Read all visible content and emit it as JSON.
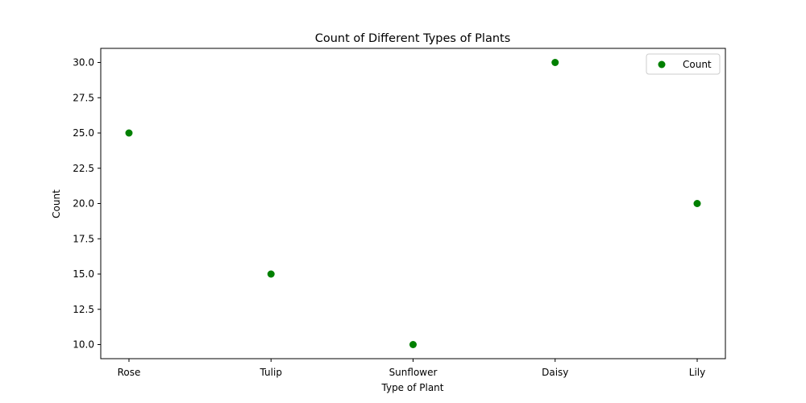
{
  "chart_data": {
    "type": "scatter",
    "title": "Count of Different Types of Plants",
    "xlabel": "Type of Plant",
    "ylabel": "Count",
    "categories": [
      "Rose",
      "Tulip",
      "Sunflower",
      "Daisy",
      "Lily"
    ],
    "series": [
      {
        "name": "Count",
        "values": [
          25,
          15,
          10,
          30,
          20
        ],
        "color": "#008000"
      }
    ],
    "ylim": [
      9.0,
      31.0
    ],
    "yticks": [
      10.0,
      12.5,
      15.0,
      17.5,
      20.0,
      22.5,
      25.0,
      27.5,
      30.0
    ],
    "ytick_labels": [
      "10.0",
      "12.5",
      "15.0",
      "17.5",
      "20.0",
      "22.5",
      "25.0",
      "27.5",
      "30.0"
    ],
    "grid": false,
    "legend_position": "top-right"
  }
}
